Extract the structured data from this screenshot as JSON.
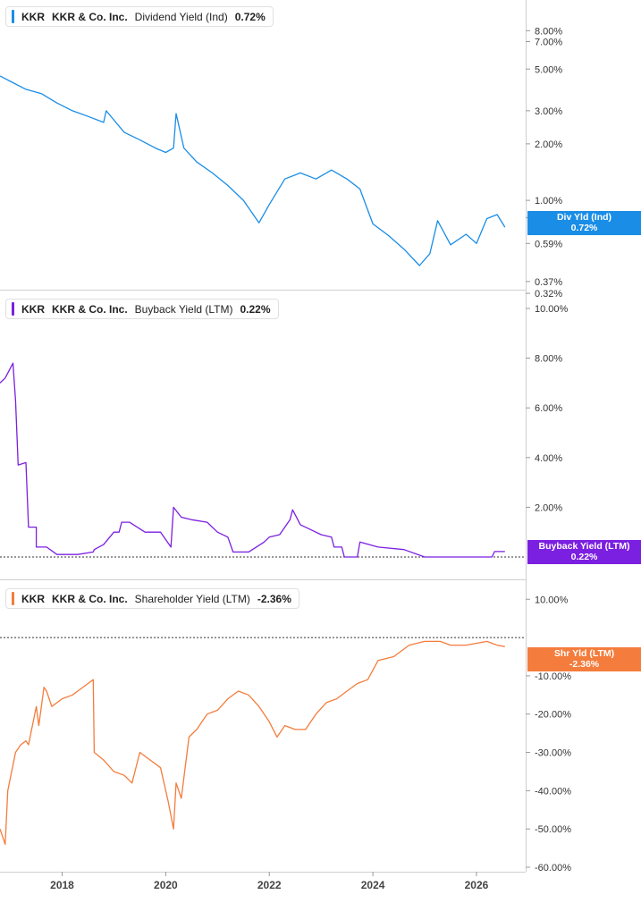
{
  "ticker": "KKR",
  "company": "KKR & Co. Inc.",
  "panels": [
    {
      "metric": "Dividend Yield (Ind)",
      "value": "0.72%",
      "color": "#1a8de6",
      "tag_label": "Div Yld (Ind)",
      "tag_value": "0.72%"
    },
    {
      "metric": "Buyback Yield (LTM)",
      "value": "0.22%",
      "color": "#7b1fe0",
      "tag_label": "Buyback Yield (LTM)",
      "tag_value": "0.22%"
    },
    {
      "metric": "Shareholder Yield (LTM)",
      "value": "-2.36%",
      "color": "#f47c3c",
      "tag_label": "Shr Yld (LTM)",
      "tag_value": "-2.36%"
    }
  ],
  "chart_data": [
    {
      "type": "line",
      "title": "KKR KKR & Co. Inc. Dividend Yield (Ind) 0.72%",
      "y_scale": "log",
      "ylim": [
        0.3,
        10
      ],
      "y_ticks": [
        "0.32%",
        "0.37%",
        "0.59%",
        "0.81%",
        "1.00%",
        "2.00%",
        "3.00%",
        "5.00%",
        "7.00%",
        "8.00%"
      ],
      "series": [
        {
          "name": "Div Yld (Ind)",
          "x": [
            2016.8,
            2017.0,
            2017.3,
            2017.6,
            2017.9,
            2018.2,
            2018.5,
            2018.8,
            2018.85,
            2019.2,
            2019.5,
            2019.8,
            2020.0,
            2020.15,
            2020.2,
            2020.35,
            2020.6,
            2020.9,
            2021.2,
            2021.5,
            2021.8,
            2022.0,
            2022.3,
            2022.6,
            2022.9,
            2023.2,
            2023.5,
            2023.75,
            2024.0,
            2024.3,
            2024.6,
            2024.9,
            2025.1,
            2025.25,
            2025.5,
            2025.8,
            2026.0,
            2026.2,
            2026.4,
            2026.55
          ],
          "values": [
            4.6,
            4.3,
            3.9,
            3.7,
            3.3,
            3.0,
            2.8,
            2.6,
            3.0,
            2.3,
            2.1,
            1.9,
            1.8,
            1.9,
            2.9,
            1.9,
            1.6,
            1.4,
            1.2,
            1.0,
            0.76,
            0.95,
            1.3,
            1.4,
            1.3,
            1.45,
            1.3,
            1.15,
            0.75,
            0.65,
            0.55,
            0.45,
            0.52,
            0.78,
            0.58,
            0.66,
            0.59,
            0.8,
            0.84,
            0.72
          ]
        }
      ]
    },
    {
      "type": "line",
      "title": "KKR KKR & Co. Inc. Buyback Yield (LTM) 0.22%",
      "ylim": [
        0,
        10
      ],
      "y_ticks": [
        "2.00%",
        "4.00%",
        "6.00%",
        "8.00%",
        "10.00%"
      ],
      "series": [
        {
          "name": "Buyback Yield (LTM)",
          "x": [
            2016.8,
            2016.9,
            2017.05,
            2017.1,
            2017.15,
            2017.3,
            2017.35,
            2017.5,
            2017.5,
            2017.7,
            2017.9,
            2018.1,
            2018.3,
            2018.6,
            2018.62,
            2018.8,
            2019.0,
            2019.1,
            2019.15,
            2019.3,
            2019.6,
            2019.9,
            2020.1,
            2020.15,
            2020.3,
            2020.5,
            2020.8,
            2021.0,
            2021.2,
            2021.3,
            2021.6,
            2021.9,
            2022.0,
            2022.2,
            2022.4,
            2022.45,
            2022.6,
            2022.8,
            2023.0,
            2023.2,
            2023.25,
            2023.4,
            2023.45,
            2023.7,
            2023.75,
            2024.1,
            2024.6,
            2025.0,
            2025.5,
            2026.0,
            2026.3,
            2026.35,
            2026.55
          ],
          "values": [
            7.0,
            7.2,
            7.8,
            6.3,
            3.7,
            3.8,
            1.2,
            1.2,
            0.4,
            0.4,
            0.1,
            0.1,
            0.1,
            0.2,
            0.3,
            0.5,
            1.0,
            1.0,
            1.4,
            1.4,
            1.0,
            1.0,
            0.4,
            2.0,
            1.6,
            1.5,
            1.4,
            1.0,
            0.8,
            0.2,
            0.2,
            0.6,
            0.8,
            0.9,
            1.5,
            1.9,
            1.3,
            1.1,
            0.9,
            0.8,
            0.4,
            0.4,
            0.0,
            0.0,
            0.6,
            0.4,
            0.3,
            0.0,
            0.0,
            0.0,
            0.0,
            0.22,
            0.22
          ]
        }
      ]
    },
    {
      "type": "line",
      "title": "KKR KKR & Co. Inc. Shareholder Yield (LTM) -2.36%",
      "ylim": [
        -60,
        12
      ],
      "y_ticks": [
        "-60.00%",
        "-50.00%",
        "-40.00%",
        "-30.00%",
        "-20.00%",
        "-10.00%",
        "10.00%"
      ],
      "series": [
        {
          "name": "Shr Yld (LTM)",
          "x": [
            2016.8,
            2016.9,
            2016.95,
            2017.1,
            2017.2,
            2017.3,
            2017.35,
            2017.5,
            2017.55,
            2017.65,
            2017.7,
            2017.8,
            2018.0,
            2018.2,
            2018.3,
            2018.5,
            2018.6,
            2018.62,
            2018.8,
            2019.0,
            2019.2,
            2019.35,
            2019.5,
            2019.7,
            2019.9,
            2020.0,
            2020.05,
            2020.15,
            2020.2,
            2020.3,
            2020.45,
            2020.6,
            2020.8,
            2021.0,
            2021.2,
            2021.4,
            2021.6,
            2021.8,
            2022.0,
            2022.15,
            2022.3,
            2022.5,
            2022.7,
            2022.9,
            2023.1,
            2023.3,
            2023.5,
            2023.7,
            2023.9,
            2024.1,
            2024.4,
            2024.7,
            2025.0,
            2025.3,
            2025.5,
            2025.8,
            2026.0,
            2026.2,
            2026.4,
            2026.55
          ],
          "values": [
            -50,
            -54,
            -40,
            -30,
            -28,
            -27,
            -28,
            -18,
            -23,
            -13,
            -14,
            -18,
            -16,
            -15,
            -14,
            -12,
            -11,
            -30,
            -32,
            -35,
            -36,
            -38,
            -30,
            -32,
            -34,
            -40,
            -43,
            -50,
            -38,
            -42,
            -26,
            -24,
            -20,
            -19,
            -16,
            -14,
            -15,
            -18,
            -22,
            -26,
            -23,
            -24,
            -24,
            -20,
            -17,
            -16,
            -14,
            -12,
            -11,
            -6,
            -5,
            -2,
            -1,
            -1,
            -2,
            -2,
            -1.5,
            -1,
            -2,
            -2.36
          ]
        }
      ]
    }
  ],
  "x_axis": {
    "ticks": [
      "2018",
      "2020",
      "2022",
      "2024",
      "2026"
    ]
  }
}
